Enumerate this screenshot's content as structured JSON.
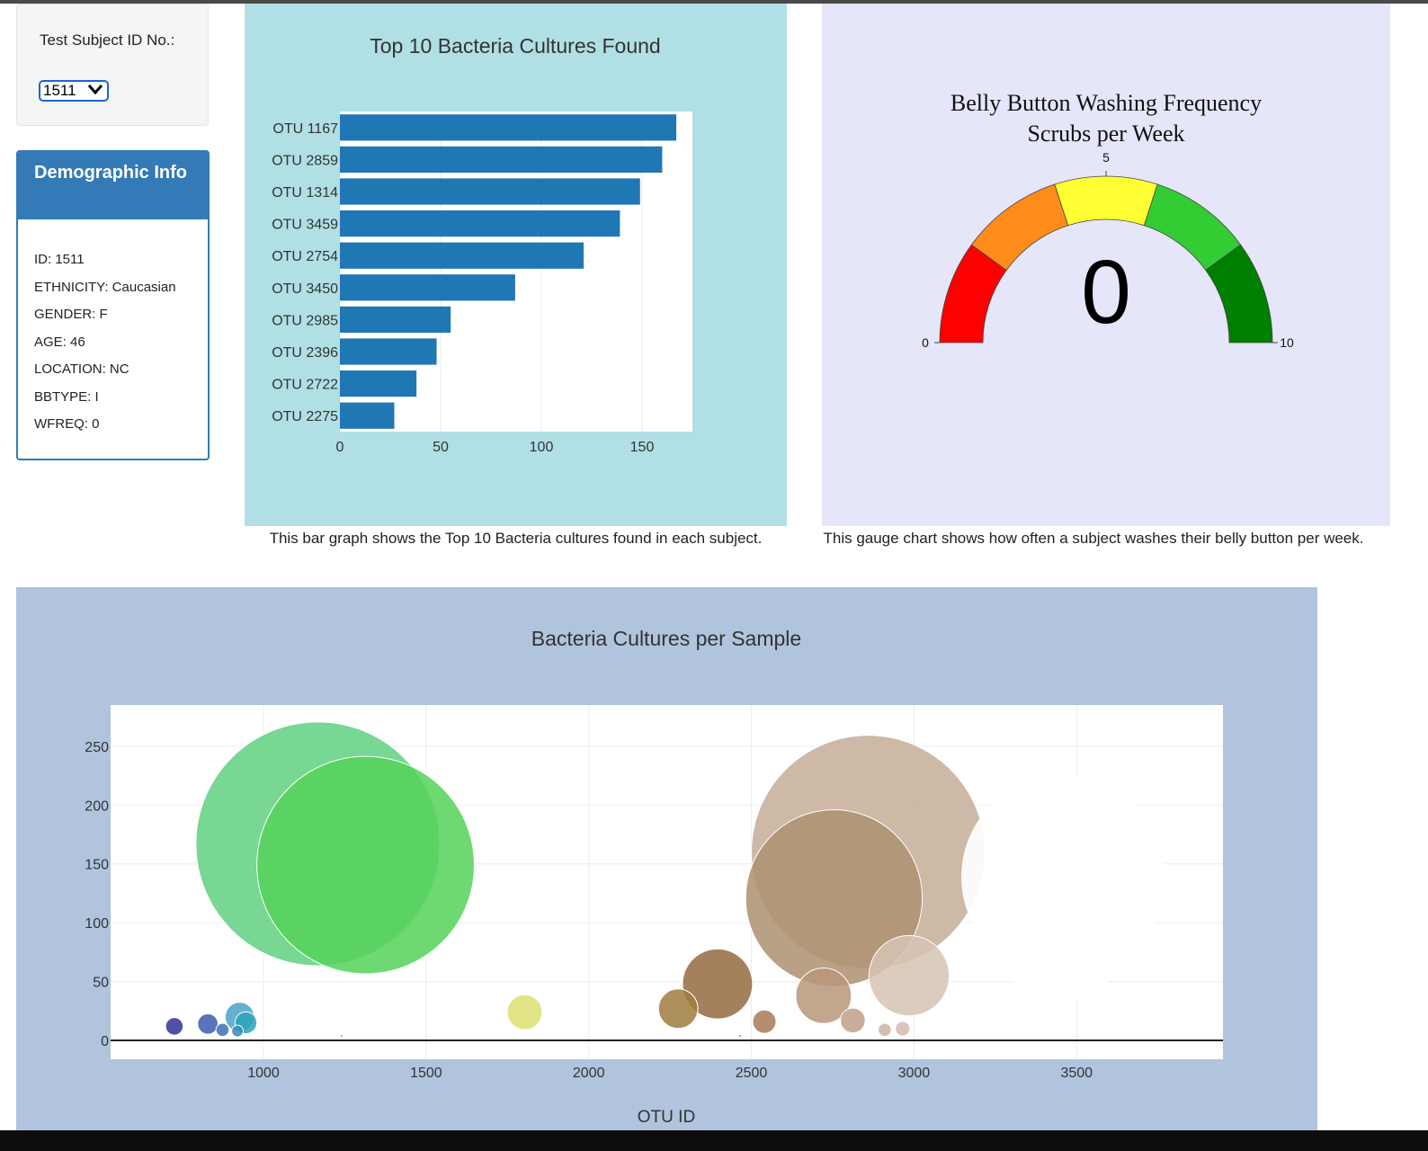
{
  "selector": {
    "label": "Test Subject ID No.:",
    "selected": "1511"
  },
  "demographic": {
    "title": "Demographic Info",
    "lines": [
      "ID: 1511",
      "ETHNICITY: Caucasian",
      "GENDER: F",
      "AGE: 46",
      "LOCATION: NC",
      "BBTYPE: I",
      "WFREQ: 0"
    ]
  },
  "bar_caption": "This bar graph shows the Top 10 Bacteria cultures found in each subject.",
  "gauge_caption": "This gauge chart shows how often a subject washes their belly button per week.",
  "colors": {
    "bar": "#1f77b4",
    "gauge_steps": [
      "#ff0000",
      "#ff8c1a",
      "#ffff33",
      "#33cc33",
      "#008000"
    ]
  },
  "chart_data": [
    {
      "type": "bar",
      "orientation": "horizontal",
      "title": "Top 10 Bacteria Cultures Found",
      "categories": [
        "OTU 1167",
        "OTU 2859",
        "OTU 1314",
        "OTU 3459",
        "OTU 2754",
        "OTU 3450",
        "OTU 2985",
        "OTU 2396",
        "OTU 2722",
        "OTU 2275"
      ],
      "values": [
        167,
        160,
        149,
        139,
        121,
        87,
        55,
        48,
        38,
        27
      ],
      "xlim": [
        0,
        175
      ],
      "xticks": [
        0,
        50,
        100,
        150
      ],
      "xlabel": "",
      "ylabel": ""
    },
    {
      "type": "gauge",
      "title": "Belly Button Washing Frequency",
      "subtitle": "Scrubs per Week",
      "value": 0,
      "display_value": "0",
      "range": [
        0,
        10
      ],
      "ticks": [
        "0",
        "5",
        "10"
      ],
      "steps": [
        [
          0,
          2
        ],
        [
          2,
          4
        ],
        [
          4,
          6
        ],
        [
          6,
          8
        ],
        [
          8,
          10
        ]
      ]
    },
    {
      "type": "scatter",
      "title": "Bacteria Cultures per Sample",
      "xlabel": "OTU ID",
      "ylabel": "",
      "xlim": [
        530,
        3950
      ],
      "ylim": [
        -16,
        285
      ],
      "xticks": [
        1000,
        1500,
        2000,
        2500,
        3000,
        3500
      ],
      "yticks": [
        0,
        50,
        100,
        150,
        200,
        250
      ],
      "points": [
        {
          "x": 726,
          "y": 12,
          "color": "#303099"
        },
        {
          "x": 829,
          "y": 14,
          "color": "#3a5cb0"
        },
        {
          "x": 874,
          "y": 9,
          "color": "#3e6fb5"
        },
        {
          "x": 920,
          "y": 8,
          "color": "#3a8bbd"
        },
        {
          "x": 927,
          "y": 20,
          "color": "#4aa3c4"
        },
        {
          "x": 946,
          "y": 15,
          "color": "#2da5b8"
        },
        {
          "x": 1167,
          "y": 167,
          "color": "#5fd080"
        },
        {
          "x": 1240,
          "y": 4,
          "color": "#44bb55"
        },
        {
          "x": 1314,
          "y": 149,
          "color": "#55d25a"
        },
        {
          "x": 1803,
          "y": 24,
          "color": "#dde070"
        },
        {
          "x": 2275,
          "y": 27,
          "color": "#a07c3d"
        },
        {
          "x": 2396,
          "y": 48,
          "color": "#956a40"
        },
        {
          "x": 2465,
          "y": 4,
          "color": "#b06040"
        },
        {
          "x": 2540,
          "y": 16,
          "color": "#a77a58"
        },
        {
          "x": 2722,
          "y": 38,
          "color": "#b8977a"
        },
        {
          "x": 2754,
          "y": 121,
          "color": "#ad9070"
        },
        {
          "x": 2812,
          "y": 17,
          "color": "#bfa08a"
        },
        {
          "x": 2859,
          "y": 160,
          "color": "#c6ac96"
        },
        {
          "x": 2910,
          "y": 9,
          "color": "#cdb4a0"
        },
        {
          "x": 2965,
          "y": 10,
          "color": "#d2bcab"
        },
        {
          "x": 2985,
          "y": 55,
          "color": "#d6c3b3"
        },
        {
          "x": 3450,
          "y": 87,
          "color": "#ffffff"
        },
        {
          "x": 3459,
          "y": 139,
          "color": "#ffffff"
        }
      ]
    }
  ]
}
